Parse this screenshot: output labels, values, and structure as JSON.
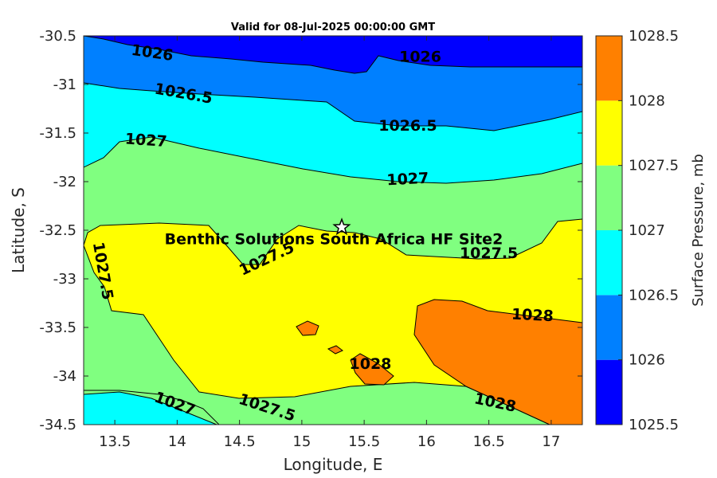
{
  "chart_data": {
    "type": "contourf",
    "title": "Valid for 08-Jul-2025 00:00:00 GMT",
    "xlabel": "Longitude, E",
    "ylabel": "Latitude, S",
    "xlim": [
      13.25,
      17.25
    ],
    "ylim": [
      -34.5,
      -30.5
    ],
    "xticks": [
      "13.5",
      "14",
      "14.5",
      "15",
      "15.5",
      "16",
      "16.5",
      "17"
    ],
    "yticks": [
      "-30.5",
      "-31",
      "-31.5",
      "-32",
      "-32.5",
      "-33",
      "-33.5",
      "-34",
      "-34.5"
    ],
    "grid": false,
    "colorbar": {
      "label": "Surface Pressure, mb",
      "levels": [
        1025.5,
        1026,
        1026.5,
        1027,
        1027.5,
        1028,
        1028.5
      ],
      "tick_labels": [
        "1025.5",
        "1026",
        "1026.5",
        "1027",
        "1027.5",
        "1028",
        "1028.5"
      ],
      "colors": [
        "#0000ff",
        "#0080ff",
        "#00ffff",
        "#80ff80",
        "#ffff00",
        "#ff8000",
        "#ff0000"
      ]
    },
    "contour_labels": [
      {
        "text": "1026",
        "lon": 13.8,
        "lat": -30.68,
        "angle": 8
      },
      {
        "text": "1026",
        "lon": 15.95,
        "lat": -30.72,
        "angle": 0
      },
      {
        "text": "1026.5",
        "lon": 14.05,
        "lat": -31.1,
        "angle": 10
      },
      {
        "text": "1026.5",
        "lon": 15.85,
        "lat": -31.43,
        "angle": 0
      },
      {
        "text": "1027",
        "lon": 13.75,
        "lat": -31.58,
        "angle": 4
      },
      {
        "text": "1027",
        "lon": 15.85,
        "lat": -31.98,
        "angle": -3
      },
      {
        "text": "1027.5",
        "lon": 13.4,
        "lat": -32.92,
        "angle": 80
      },
      {
        "text": "1027.5",
        "lon": 14.72,
        "lat": -32.8,
        "angle": -25
      },
      {
        "text": "1027.5",
        "lon": 16.5,
        "lat": -32.74,
        "angle": 0
      },
      {
        "text": "1028",
        "lon": 15.55,
        "lat": -33.88,
        "angle": 0
      },
      {
        "text": "1028",
        "lon": 16.85,
        "lat": -33.38,
        "angle": 3
      },
      {
        "text": "1028",
        "lon": 16.55,
        "lat": -34.28,
        "angle": 12
      },
      {
        "text": "1027",
        "lon": 13.98,
        "lat": -34.29,
        "angle": 20
      },
      {
        "text": "1027.5",
        "lon": 14.72,
        "lat": -34.33,
        "angle": 18
      }
    ],
    "site": {
      "name": "Benthic Solutions South Africa HF Site2",
      "lon": 15.32,
      "lat": -32.47,
      "marker": "star"
    }
  }
}
